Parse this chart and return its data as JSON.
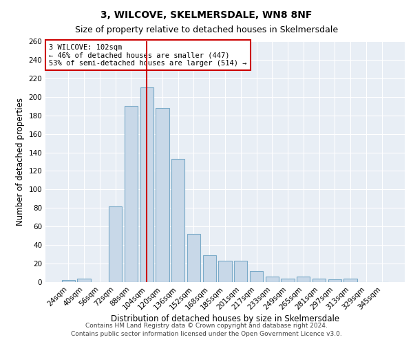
{
  "title1": "3, WILCOVE, SKELMERSDALE, WN8 8NF",
  "title2": "Size of property relative to detached houses in Skelmersdale",
  "xlabel": "Distribution of detached houses by size in Skelmersdale",
  "ylabel": "Number of detached properties",
  "categories": [
    "24sqm",
    "40sqm",
    "56sqm",
    "72sqm",
    "88sqm",
    "104sqm",
    "120sqm",
    "136sqm",
    "152sqm",
    "168sqm",
    "185sqm",
    "201sqm",
    "217sqm",
    "233sqm",
    "249sqm",
    "265sqm",
    "281sqm",
    "297sqm",
    "313sqm",
    "329sqm",
    "345sqm"
  ],
  "values": [
    2,
    4,
    0,
    82,
    190,
    210,
    188,
    133,
    52,
    29,
    23,
    23,
    12,
    6,
    4,
    6,
    4,
    3,
    4,
    0,
    0
  ],
  "bar_color": "#c8d8e8",
  "bar_edge_color": "#7aaac8",
  "vline_index": 5,
  "vline_color": "#cc0000",
  "annotation_line1": "3 WILCOVE: 102sqm",
  "annotation_line2": "← 46% of detached houses are smaller (447)",
  "annotation_line3": "53% of semi-detached houses are larger (514) →",
  "annotation_box_color": "#cc0000",
  "ylim": [
    0,
    260
  ],
  "yticks": [
    0,
    20,
    40,
    60,
    80,
    100,
    120,
    140,
    160,
    180,
    200,
    220,
    240,
    260
  ],
  "background_color": "#e8eef5",
  "footer1": "Contains HM Land Registry data © Crown copyright and database right 2024.",
  "footer2": "Contains public sector information licensed under the Open Government Licence v3.0.",
  "title1_fontsize": 10,
  "title2_fontsize": 9,
  "xlabel_fontsize": 8.5,
  "ylabel_fontsize": 8.5,
  "tick_fontsize": 7.5,
  "annotation_fontsize": 7.5,
  "footer_fontsize": 6.5
}
